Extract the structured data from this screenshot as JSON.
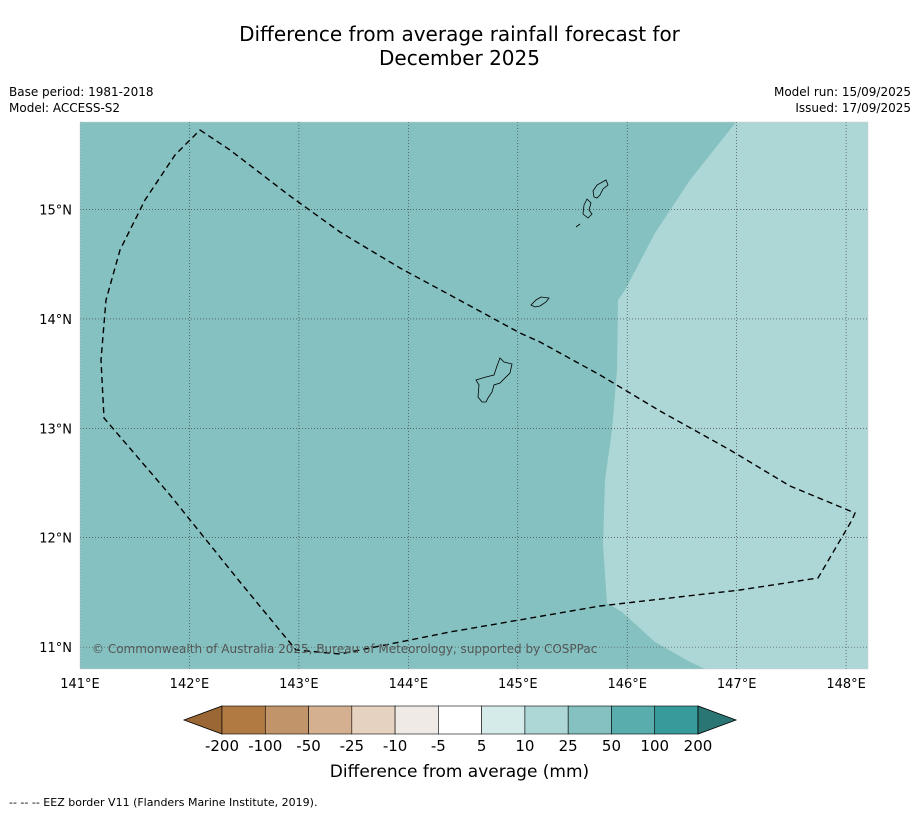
{
  "title_line1": "Difference from average rainfall forecast for",
  "title_line2": "December 2025",
  "meta_left": {
    "base_period": "Base period: 1981-2018",
    "model": "Model: ACCESS-S2"
  },
  "meta_right": {
    "model_run": "Model run: 15/09/2025",
    "issued": "Issued: 17/09/2025"
  },
  "map": {
    "lon_range": [
      141,
      148.2
    ],
    "lat_range": [
      10.8,
      15.8
    ],
    "lon_ticks": [
      141,
      142,
      143,
      144,
      145,
      146,
      147,
      148
    ],
    "lat_ticks": [
      11,
      12,
      13,
      14,
      15
    ],
    "lon_labels": [
      "141°E",
      "142°E",
      "143°E",
      "144°E",
      "145°E",
      "146°E",
      "147°E",
      "148°E"
    ],
    "lat_labels": [
      "11°N",
      "12°N",
      "13°N",
      "14°N",
      "15°N"
    ],
    "grid": true,
    "field_colors": {
      "west": "#84c1c0",
      "east": "#add6d6"
    },
    "copyright": "© Commonwealth of Australia 2025, Bureau of Meteorology, supported by COSPPac"
  },
  "colorbar": {
    "labels": [
      "-200",
      "-100",
      "-50",
      "-25",
      "-10",
      "-5",
      "5",
      "10",
      "25",
      "50",
      "100",
      "200"
    ],
    "colors": [
      "#9b6734",
      "#b07b43",
      "#c19469",
      "#d4b091",
      "#e6d2c0",
      "#efeae6",
      "#ffffff",
      "#d5ebea",
      "#add6d6",
      "#84c1c0",
      "#59adac",
      "#369b9a",
      "#2a7675"
    ],
    "title": "Difference from average (mm)"
  },
  "footer": "--  --  -- EEZ border V11 (Flanders Marine Institute, 2019)."
}
